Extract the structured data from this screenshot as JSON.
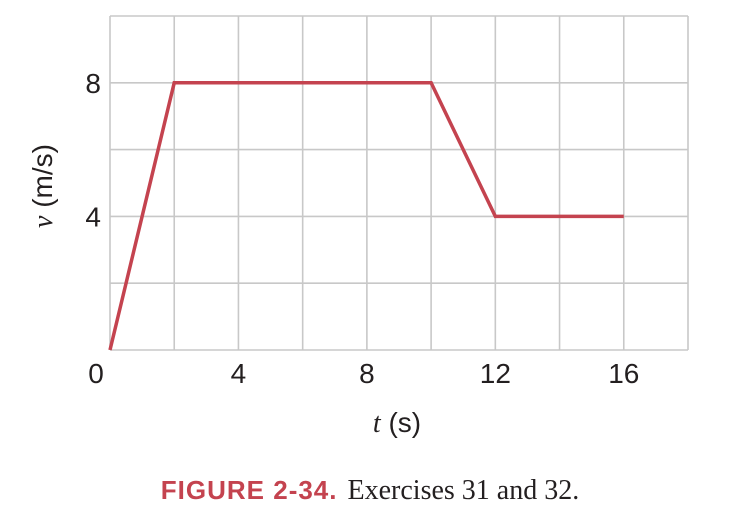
{
  "chart_data": {
    "type": "line",
    "xlabel": {
      "var": "t",
      "unit": " (s)"
    },
    "ylabel": {
      "var": "v",
      "unit": " (m/s)"
    },
    "xlim": [
      0,
      18
    ],
    "ylim": [
      0,
      10
    ],
    "x_ticks": [
      0,
      4,
      8,
      12,
      16
    ],
    "y_ticks": [
      4,
      8
    ],
    "origin_label": "0",
    "grid": true,
    "grid_step_x": 2,
    "grid_step_y": 2,
    "line_color": "#c4434f",
    "grid_color": "#c8c8c8",
    "series": [
      {
        "x": [
          0,
          2,
          10,
          12,
          16
        ],
        "y": [
          0,
          8,
          8,
          4,
          4
        ]
      }
    ]
  },
  "caption": {
    "label": "FIGURE 2-34.",
    "text": "Exercises 31 and 32."
  }
}
